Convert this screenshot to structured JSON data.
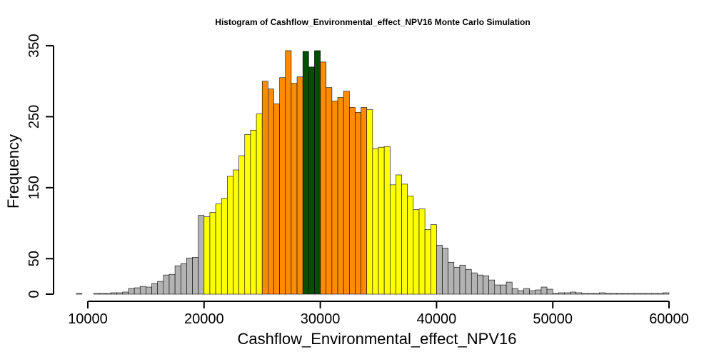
{
  "chart_data": {
    "type": "bar",
    "title": "Histogram of  Cashflow_Environmental_effect_NPV16  Monte Carlo Simulation",
    "xlabel": "Cashflow_Environmental_effect_NPV16",
    "ylabel": "Frequency",
    "xlim": [
      9000,
      60000
    ],
    "ylim": [
      0,
      350
    ],
    "bin_width": 500,
    "bin_start": 9000,
    "x_ticks": [
      "10000",
      "20000",
      "30000",
      "40000",
      "50000",
      "60000"
    ],
    "y_ticks": [
      "0",
      "50",
      "150",
      "250",
      "350"
    ],
    "grid": false,
    "colors": {
      "tail": "#b3b3b3",
      "outer": "#ffff00",
      "inner": "#ff8c00",
      "center": "#005000",
      "edge": "#000000"
    },
    "bins": [
      {
        "x": 9000,
        "count": 1,
        "band": "tail"
      },
      {
        "x": 9500,
        "count": 0,
        "band": "tail"
      },
      {
        "x": 10000,
        "count": 0,
        "band": "tail"
      },
      {
        "x": 10500,
        "count": 1,
        "band": "tail"
      },
      {
        "x": 11000,
        "count": 1,
        "band": "tail"
      },
      {
        "x": 11500,
        "count": 1,
        "band": "tail"
      },
      {
        "x": 12000,
        "count": 2,
        "band": "tail"
      },
      {
        "x": 12500,
        "count": 2,
        "band": "tail"
      },
      {
        "x": 13000,
        "count": 3,
        "band": "tail"
      },
      {
        "x": 13500,
        "count": 8,
        "band": "tail"
      },
      {
        "x": 14000,
        "count": 9,
        "band": "tail"
      },
      {
        "x": 14500,
        "count": 11,
        "band": "tail"
      },
      {
        "x": 15000,
        "count": 10,
        "band": "tail"
      },
      {
        "x": 15500,
        "count": 15,
        "band": "tail"
      },
      {
        "x": 16000,
        "count": 18,
        "band": "tail"
      },
      {
        "x": 16500,
        "count": 27,
        "band": "tail"
      },
      {
        "x": 17000,
        "count": 28,
        "band": "tail"
      },
      {
        "x": 17500,
        "count": 40,
        "band": "tail"
      },
      {
        "x": 18000,
        "count": 43,
        "band": "tail"
      },
      {
        "x": 18500,
        "count": 51,
        "band": "tail"
      },
      {
        "x": 19000,
        "count": 52,
        "band": "tail"
      },
      {
        "x": 19500,
        "count": 111,
        "band": "tail"
      },
      {
        "x": 20000,
        "count": 109,
        "band": "outer"
      },
      {
        "x": 20500,
        "count": 115,
        "band": "outer"
      },
      {
        "x": 21000,
        "count": 127,
        "band": "outer"
      },
      {
        "x": 21500,
        "count": 135,
        "band": "outer"
      },
      {
        "x": 22000,
        "count": 166,
        "band": "outer"
      },
      {
        "x": 22500,
        "count": 175,
        "band": "outer"
      },
      {
        "x": 23000,
        "count": 195,
        "band": "outer"
      },
      {
        "x": 23500,
        "count": 225,
        "band": "outer"
      },
      {
        "x": 24000,
        "count": 231,
        "band": "outer"
      },
      {
        "x": 24500,
        "count": 254,
        "band": "outer"
      },
      {
        "x": 25000,
        "count": 300,
        "band": "inner"
      },
      {
        "x": 25500,
        "count": 289,
        "band": "inner"
      },
      {
        "x": 26000,
        "count": 268,
        "band": "inner"
      },
      {
        "x": 26500,
        "count": 305,
        "band": "inner"
      },
      {
        "x": 27000,
        "count": 343,
        "band": "inner"
      },
      {
        "x": 27500,
        "count": 297,
        "band": "inner"
      },
      {
        "x": 28000,
        "count": 306,
        "band": "inner"
      },
      {
        "x": 28500,
        "count": 342,
        "band": "center"
      },
      {
        "x": 29000,
        "count": 320,
        "band": "center"
      },
      {
        "x": 29500,
        "count": 343,
        "band": "center"
      },
      {
        "x": 30000,
        "count": 327,
        "band": "inner"
      },
      {
        "x": 30500,
        "count": 291,
        "band": "inner"
      },
      {
        "x": 31000,
        "count": 272,
        "band": "inner"
      },
      {
        "x": 31500,
        "count": 277,
        "band": "inner"
      },
      {
        "x": 32000,
        "count": 286,
        "band": "inner"
      },
      {
        "x": 32500,
        "count": 263,
        "band": "inner"
      },
      {
        "x": 33000,
        "count": 256,
        "band": "inner"
      },
      {
        "x": 33500,
        "count": 263,
        "band": "inner"
      },
      {
        "x": 34000,
        "count": 260,
        "band": "outer"
      },
      {
        "x": 34500,
        "count": 205,
        "band": "outer"
      },
      {
        "x": 35000,
        "count": 207,
        "band": "outer"
      },
      {
        "x": 35500,
        "count": 208,
        "band": "outer"
      },
      {
        "x": 36000,
        "count": 154,
        "band": "outer"
      },
      {
        "x": 36500,
        "count": 168,
        "band": "outer"
      },
      {
        "x": 37000,
        "count": 155,
        "band": "outer"
      },
      {
        "x": 37500,
        "count": 138,
        "band": "outer"
      },
      {
        "x": 38000,
        "count": 119,
        "band": "outer"
      },
      {
        "x": 38500,
        "count": 120,
        "band": "outer"
      },
      {
        "x": 39000,
        "count": 91,
        "band": "outer"
      },
      {
        "x": 39500,
        "count": 98,
        "band": "outer"
      },
      {
        "x": 40000,
        "count": 69,
        "band": "tail"
      },
      {
        "x": 40500,
        "count": 65,
        "band": "tail"
      },
      {
        "x": 41000,
        "count": 45,
        "band": "tail"
      },
      {
        "x": 41500,
        "count": 38,
        "band": "tail"
      },
      {
        "x": 42000,
        "count": 41,
        "band": "tail"
      },
      {
        "x": 42500,
        "count": 35,
        "band": "tail"
      },
      {
        "x": 43000,
        "count": 30,
        "band": "tail"
      },
      {
        "x": 43500,
        "count": 27,
        "band": "tail"
      },
      {
        "x": 44000,
        "count": 26,
        "band": "tail"
      },
      {
        "x": 44500,
        "count": 20,
        "band": "tail"
      },
      {
        "x": 45000,
        "count": 13,
        "band": "tail"
      },
      {
        "x": 45500,
        "count": 13,
        "band": "tail"
      },
      {
        "x": 46000,
        "count": 17,
        "band": "tail"
      },
      {
        "x": 46500,
        "count": 8,
        "band": "tail"
      },
      {
        "x": 47000,
        "count": 5,
        "band": "tail"
      },
      {
        "x": 47500,
        "count": 8,
        "band": "tail"
      },
      {
        "x": 48000,
        "count": 5,
        "band": "tail"
      },
      {
        "x": 48500,
        "count": 6,
        "band": "tail"
      },
      {
        "x": 49000,
        "count": 10,
        "band": "tail"
      },
      {
        "x": 49500,
        "count": 7,
        "band": "tail"
      },
      {
        "x": 50000,
        "count": 1,
        "band": "tail"
      },
      {
        "x": 50500,
        "count": 2,
        "band": "tail"
      },
      {
        "x": 51000,
        "count": 2,
        "band": "tail"
      },
      {
        "x": 51500,
        "count": 3,
        "band": "tail"
      },
      {
        "x": 52000,
        "count": 2,
        "band": "tail"
      },
      {
        "x": 52500,
        "count": 1,
        "band": "tail"
      },
      {
        "x": 53000,
        "count": 1,
        "band": "tail"
      },
      {
        "x": 53500,
        "count": 1,
        "band": "tail"
      },
      {
        "x": 54000,
        "count": 2,
        "band": "tail"
      },
      {
        "x": 54500,
        "count": 1,
        "band": "tail"
      },
      {
        "x": 55000,
        "count": 1,
        "band": "tail"
      },
      {
        "x": 55500,
        "count": 1,
        "band": "tail"
      },
      {
        "x": 56000,
        "count": 1,
        "band": "tail"
      },
      {
        "x": 56500,
        "count": 1,
        "band": "tail"
      },
      {
        "x": 57000,
        "count": 1,
        "band": "tail"
      },
      {
        "x": 57500,
        "count": 1,
        "band": "tail"
      },
      {
        "x": 58000,
        "count": 1,
        "band": "tail"
      },
      {
        "x": 58500,
        "count": 1,
        "band": "tail"
      },
      {
        "x": 59000,
        "count": 1,
        "band": "tail"
      },
      {
        "x": 59500,
        "count": 2,
        "band": "tail"
      }
    ]
  }
}
